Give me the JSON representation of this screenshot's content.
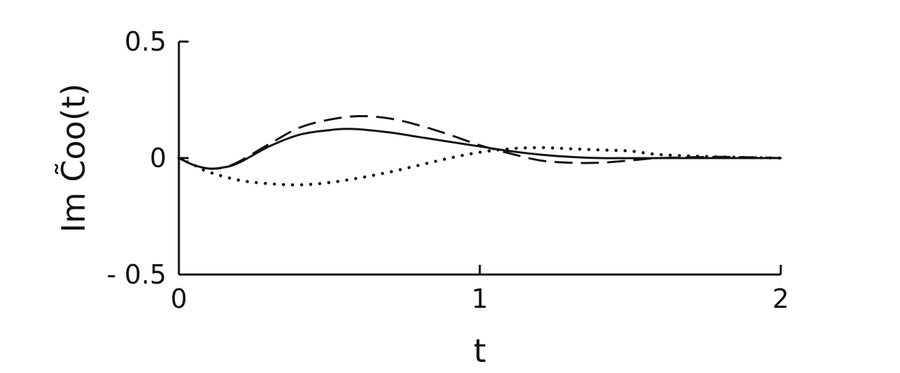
{
  "chart_data": {
    "type": "line",
    "title": "",
    "xlabel": "t",
    "ylabel": "Im C̃oo(t)",
    "xlim": [
      0,
      2
    ],
    "ylim": [
      -0.5,
      0.5
    ],
    "xticks": [
      0,
      1,
      2
    ],
    "xtick_labels": [
      "0",
      "1",
      "2"
    ],
    "yticks": [
      -0.5,
      0,
      0.5
    ],
    "ytick_labels": [
      "- 0.5",
      "0",
      "0.5"
    ],
    "grid": false,
    "legend": "none",
    "series": [
      {
        "style": "solid",
        "x": [
          0,
          0.05,
          0.1,
          0.15,
          0.2,
          0.3,
          0.4,
          0.5,
          0.58,
          0.7,
          0.8,
          0.9,
          1.0,
          1.1,
          1.2,
          1.3,
          1.4,
          1.6,
          1.8,
          2.0
        ],
        "y": [
          0,
          -0.03,
          -0.045,
          -0.04,
          -0.02,
          0.05,
          0.1,
          0.12,
          0.125,
          0.11,
          0.09,
          0.07,
          0.05,
          0.03,
          0.015,
          0.005,
          0.0,
          0.0,
          0.0,
          0.0
        ]
      },
      {
        "style": "dashed",
        "x": [
          0,
          0.05,
          0.1,
          0.15,
          0.2,
          0.3,
          0.4,
          0.5,
          0.6,
          0.7,
          0.8,
          0.9,
          1.0,
          1.1,
          1.2,
          1.3,
          1.4,
          1.5,
          1.6,
          1.8,
          2.0
        ],
        "y": [
          0,
          -0.03,
          -0.045,
          -0.04,
          -0.015,
          0.06,
          0.13,
          0.165,
          0.18,
          0.17,
          0.14,
          0.1,
          0.055,
          0.02,
          -0.01,
          -0.02,
          -0.02,
          -0.01,
          0.0,
          0.005,
          0.0
        ]
      },
      {
        "style": "dotted",
        "x": [
          0,
          0.05,
          0.1,
          0.2,
          0.3,
          0.4,
          0.5,
          0.6,
          0.7,
          0.8,
          0.9,
          1.0,
          1.1,
          1.2,
          1.3,
          1.4,
          1.5,
          1.6,
          1.8,
          2.0
        ],
        "y": [
          0,
          -0.03,
          -0.06,
          -0.095,
          -0.11,
          -0.115,
          -0.105,
          -0.085,
          -0.06,
          -0.03,
          0.0,
          0.025,
          0.04,
          0.045,
          0.04,
          0.035,
          0.03,
          0.015,
          0.005,
          0.0
        ]
      }
    ]
  }
}
